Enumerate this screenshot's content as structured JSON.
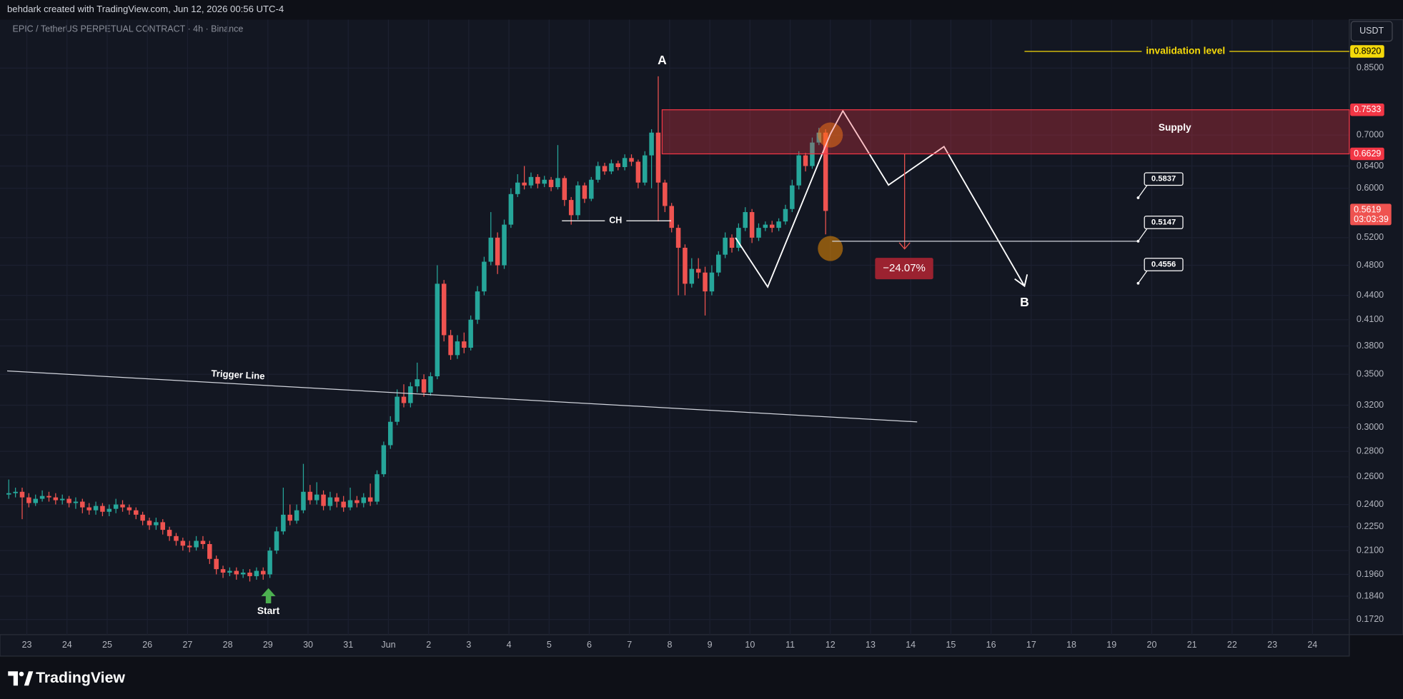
{
  "header": {
    "credit": "behdark created with TradingView.com, Jun 12, 2026 00:56 UTC-4",
    "symbol": "EPIC / TetherUS PERPETUAL CONTRACT · 4h · Binance"
  },
  "footer": {
    "brand": "TradingView"
  },
  "chart_data": {
    "type": "candlestick",
    "log_y": true,
    "grid": true,
    "currency": "USDT",
    "categories": [
      "23",
      "24",
      "25",
      "26",
      "27",
      "28",
      "29",
      "30",
      "31",
      "Jun",
      "2",
      "3",
      "4",
      "5",
      "6",
      "7",
      "8",
      "9",
      "10",
      "11",
      "12",
      "13",
      "14",
      "15",
      "16",
      "17",
      "18",
      "19",
      "20",
      "21",
      "22",
      "23",
      "24"
    ],
    "ylim": [
      0.1646,
      0.978
    ],
    "yticks": [
      {
        "value": 0.85,
        "label": "0.8500"
      },
      {
        "value": 0.7,
        "label": "0.7000"
      },
      {
        "value": 0.64,
        "label": "0.6400"
      },
      {
        "value": 0.6,
        "label": "0.6000"
      },
      {
        "value": 0.52,
        "label": "0.5200"
      },
      {
        "value": 0.48,
        "label": "0.4800"
      },
      {
        "value": 0.44,
        "label": "0.4400"
      },
      {
        "value": 0.41,
        "label": "0.4100"
      },
      {
        "value": 0.38,
        "label": "0.3800"
      },
      {
        "value": 0.35,
        "label": "0.3500"
      },
      {
        "value": 0.32,
        "label": "0.3200"
      },
      {
        "value": 0.3,
        "label": "0.3000"
      },
      {
        "value": 0.28,
        "label": "0.2800"
      },
      {
        "value": 0.26,
        "label": "0.2600"
      },
      {
        "value": 0.24,
        "label": "0.2400"
      },
      {
        "value": 0.225,
        "label": "0.2250"
      },
      {
        "value": 0.21,
        "label": "0.2100"
      },
      {
        "value": 0.196,
        "label": "0.1960"
      },
      {
        "value": 0.184,
        "label": "0.1840"
      },
      {
        "value": 0.172,
        "label": "0.1720"
      }
    ],
    "up_color": "#26a69a",
    "down_color": "#ef5350",
    "open": [
      0.247,
      0.248,
      0.249,
      0.245,
      0.241,
      0.244,
      0.246,
      0.245,
      0.243,
      0.244,
      0.241,
      0.242,
      0.238,
      0.236,
      0.239,
      0.235,
      0.237,
      0.24,
      0.238,
      0.236,
      0.233,
      0.229,
      0.226,
      0.228,
      0.223,
      0.219,
      0.216,
      0.213,
      0.212,
      0.216,
      0.214,
      0.205,
      0.199,
      0.197,
      0.198,
      0.196,
      0.197,
      0.195,
      0.198,
      0.196,
      0.21,
      0.222,
      0.233,
      0.229,
      0.236,
      0.249,
      0.243,
      0.247,
      0.239,
      0.245,
      0.242,
      0.238,
      0.243,
      0.241,
      0.245,
      0.242,
      0.262,
      0.285,
      0.305,
      0.328,
      0.322,
      0.338,
      0.345,
      0.332,
      0.348,
      0.455,
      0.392,
      0.37,
      0.385,
      0.378,
      0.41,
      0.445,
      0.485,
      0.52,
      0.48,
      0.54,
      0.59,
      0.61,
      0.605,
      0.62,
      0.608,
      0.615,
      0.602,
      0.618,
      0.58,
      0.555,
      0.605,
      0.582,
      0.615,
      0.64,
      0.63,
      0.645,
      0.638,
      0.655,
      0.648,
      0.61,
      0.66,
      0.705,
      0.61,
      0.57,
      0.535,
      0.505,
      0.455,
      0.475,
      0.47,
      0.445,
      0.47,
      0.495,
      0.52,
      0.505,
      0.535,
      0.56,
      0.52,
      0.535,
      0.54,
      0.535,
      0.545,
      0.565,
      0.605,
      0.66,
      0.64,
      0.685,
      0.705
    ],
    "high": [
      0.258,
      0.252,
      0.252,
      0.248,
      0.247,
      0.25,
      0.249,
      0.248,
      0.247,
      0.246,
      0.245,
      0.244,
      0.241,
      0.242,
      0.241,
      0.24,
      0.244,
      0.243,
      0.24,
      0.238,
      0.235,
      0.231,
      0.231,
      0.23,
      0.225,
      0.221,
      0.218,
      0.216,
      0.219,
      0.219,
      0.216,
      0.207,
      0.201,
      0.2,
      0.2,
      0.199,
      0.199,
      0.2,
      0.2,
      0.212,
      0.225,
      0.252,
      0.24,
      0.24,
      0.27,
      0.254,
      0.256,
      0.25,
      0.249,
      0.248,
      0.246,
      0.252,
      0.246,
      0.248,
      0.255,
      0.265,
      0.288,
      0.31,
      0.335,
      0.34,
      0.342,
      0.362,
      0.35,
      0.352,
      0.48,
      0.46,
      0.398,
      0.392,
      0.395,
      0.415,
      0.452,
      0.492,
      0.56,
      0.528,
      0.548,
      0.6,
      0.625,
      0.64,
      0.628,
      0.625,
      0.622,
      0.62,
      0.68,
      0.622,
      0.585,
      0.612,
      0.61,
      0.62,
      0.648,
      0.646,
      0.652,
      0.65,
      0.662,
      0.662,
      0.652,
      0.668,
      0.712,
      0.83,
      0.615,
      0.575,
      0.54,
      0.51,
      0.49,
      0.49,
      0.478,
      0.48,
      0.5,
      0.528,
      0.525,
      0.542,
      0.568,
      0.565,
      0.542,
      0.545,
      0.546,
      0.55,
      0.572,
      0.615,
      0.668,
      0.665,
      0.695,
      0.715,
      0.712
    ],
    "low": [
      0.244,
      0.245,
      0.23,
      0.238,
      0.239,
      0.242,
      0.242,
      0.24,
      0.24,
      0.238,
      0.237,
      0.234,
      0.233,
      0.233,
      0.232,
      0.232,
      0.234,
      0.235,
      0.233,
      0.23,
      0.226,
      0.223,
      0.223,
      0.22,
      0.216,
      0.213,
      0.21,
      0.209,
      0.21,
      0.211,
      0.202,
      0.196,
      0.194,
      0.195,
      0.193,
      0.194,
      0.192,
      0.193,
      0.193,
      0.194,
      0.208,
      0.22,
      0.226,
      0.227,
      0.234,
      0.24,
      0.24,
      0.236,
      0.236,
      0.238,
      0.235,
      0.236,
      0.238,
      0.238,
      0.239,
      0.24,
      0.26,
      0.282,
      0.302,
      0.318,
      0.318,
      0.332,
      0.328,
      0.329,
      0.345,
      0.385,
      0.365,
      0.366,
      0.372,
      0.375,
      0.405,
      0.44,
      0.48,
      0.468,
      0.475,
      0.535,
      0.585,
      0.598,
      0.6,
      0.6,
      0.602,
      0.595,
      0.598,
      0.57,
      0.54,
      0.548,
      0.575,
      0.578,
      0.61,
      0.624,
      0.625,
      0.632,
      0.632,
      0.64,
      0.6,
      0.605,
      0.6,
      0.545,
      0.56,
      0.528,
      0.44,
      0.44,
      0.45,
      0.462,
      0.415,
      0.44,
      0.465,
      0.49,
      0.498,
      0.5,
      0.53,
      0.512,
      0.515,
      0.53,
      0.528,
      0.53,
      0.54,
      0.56,
      0.598,
      0.63,
      0.635,
      0.68,
      0.525
    ],
    "close": [
      0.248,
      0.249,
      0.245,
      0.241,
      0.244,
      0.246,
      0.245,
      0.243,
      0.244,
      0.241,
      0.242,
      0.238,
      0.236,
      0.239,
      0.235,
      0.237,
      0.24,
      0.238,
      0.236,
      0.233,
      0.229,
      0.226,
      0.228,
      0.223,
      0.219,
      0.216,
      0.213,
      0.212,
      0.216,
      0.214,
      0.205,
      0.199,
      0.197,
      0.198,
      0.196,
      0.197,
      0.195,
      0.198,
      0.196,
      0.21,
      0.222,
      0.233,
      0.229,
      0.236,
      0.249,
      0.243,
      0.247,
      0.239,
      0.245,
      0.242,
      0.238,
      0.243,
      0.241,
      0.245,
      0.242,
      0.262,
      0.285,
      0.305,
      0.328,
      0.322,
      0.338,
      0.345,
      0.332,
      0.348,
      0.455,
      0.392,
      0.37,
      0.385,
      0.378,
      0.41,
      0.445,
      0.485,
      0.52,
      0.48,
      0.54,
      0.59,
      0.61,
      0.605,
      0.62,
      0.608,
      0.615,
      0.602,
      0.618,
      0.58,
      0.555,
      0.605,
      0.582,
      0.615,
      0.64,
      0.63,
      0.645,
      0.638,
      0.655,
      0.648,
      0.61,
      0.66,
      0.705,
      0.61,
      0.57,
      0.535,
      0.505,
      0.455,
      0.475,
      0.47,
      0.445,
      0.47,
      0.495,
      0.52,
      0.505,
      0.535,
      0.56,
      0.52,
      0.535,
      0.54,
      0.535,
      0.545,
      0.565,
      0.605,
      0.66,
      0.64,
      0.685,
      0.705,
      0.5619
    ],
    "last_price": 0.5619,
    "countdown": "03:03:39",
    "invalidation": {
      "label": "invalidation level",
      "price": {
        "value": 0.892,
        "label": "0.8920"
      },
      "color": "#f5d90a"
    },
    "supply": {
      "label": "Supply",
      "high": 0.7533,
      "low": 0.6629,
      "color": "#f23645"
    },
    "move": {
      "value": -24.07,
      "label": "−24.07%"
    },
    "targets": [
      0.5837,
      0.5147,
      0.4556
    ],
    "annotations": {
      "peak": "A",
      "target": "B",
      "change": "CH",
      "trigger": "Trigger Line",
      "start": "Start"
    }
  }
}
